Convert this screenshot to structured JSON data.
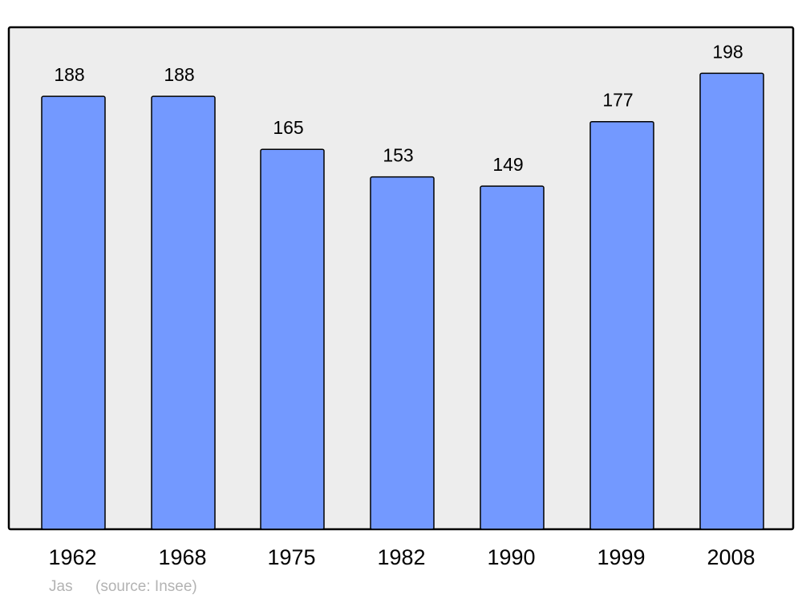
{
  "chart_data": {
    "type": "bar",
    "categories": [
      "1962",
      "1968",
      "1975",
      "1982",
      "1990",
      "1999",
      "2008"
    ],
    "values": [
      188,
      188,
      165,
      153,
      149,
      177,
      198
    ],
    "title": "",
    "xlabel": "",
    "ylabel": "",
    "ylim": [
      0,
      218
    ],
    "grid": false,
    "data_labels": true,
    "colors": {
      "bar": "#7399ff",
      "plot_background": "#ededed",
      "outline": "#000000",
      "footer_text": "#b3b3b3"
    }
  },
  "footer": {
    "commune": "Jas",
    "source": "(source: Insee)"
  }
}
